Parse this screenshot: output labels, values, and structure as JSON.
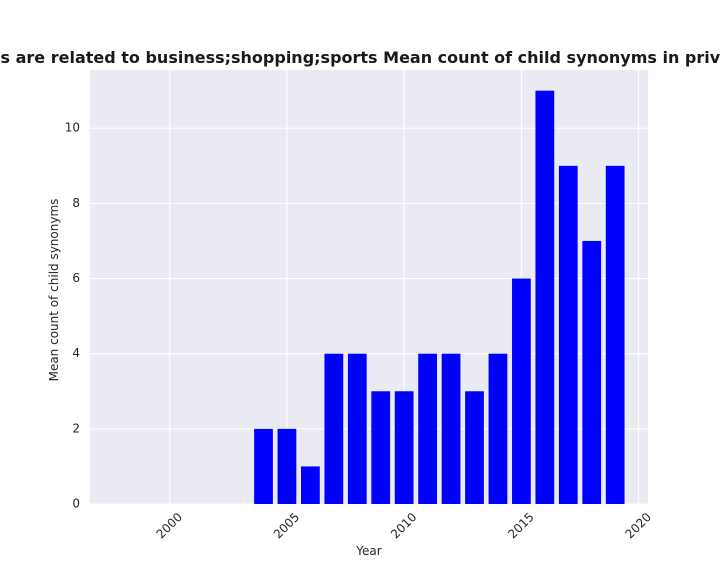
{
  "chart_data": {
    "type": "bar",
    "title": "Categories are related to business;shopping;sports Mean count of child synonyms in privacy policies",
    "xlabel": "Year",
    "ylabel": "Mean count of child synonyms",
    "x": [
      2004,
      2005,
      2006,
      2007,
      2008,
      2009,
      2010,
      2011,
      2012,
      2013,
      2014,
      2015,
      2016,
      2017,
      2018,
      2019
    ],
    "values": [
      2,
      2,
      1,
      4,
      4,
      3,
      3,
      4,
      4,
      3,
      4,
      6,
      11,
      9,
      7,
      9
    ],
    "xlim": [
      1996.6,
      2020.4
    ],
    "ylim": [
      0,
      11.55
    ],
    "xticks": [
      2000,
      2005,
      2010,
      2015,
      2020
    ],
    "yticks": [
      0,
      2,
      4,
      6,
      8,
      10
    ],
    "grid": true,
    "colors": {
      "bar": "#0000ff",
      "plot_background": "#eaeaf2",
      "grid": "#ffffff",
      "figure_background": "#ffffff"
    }
  }
}
